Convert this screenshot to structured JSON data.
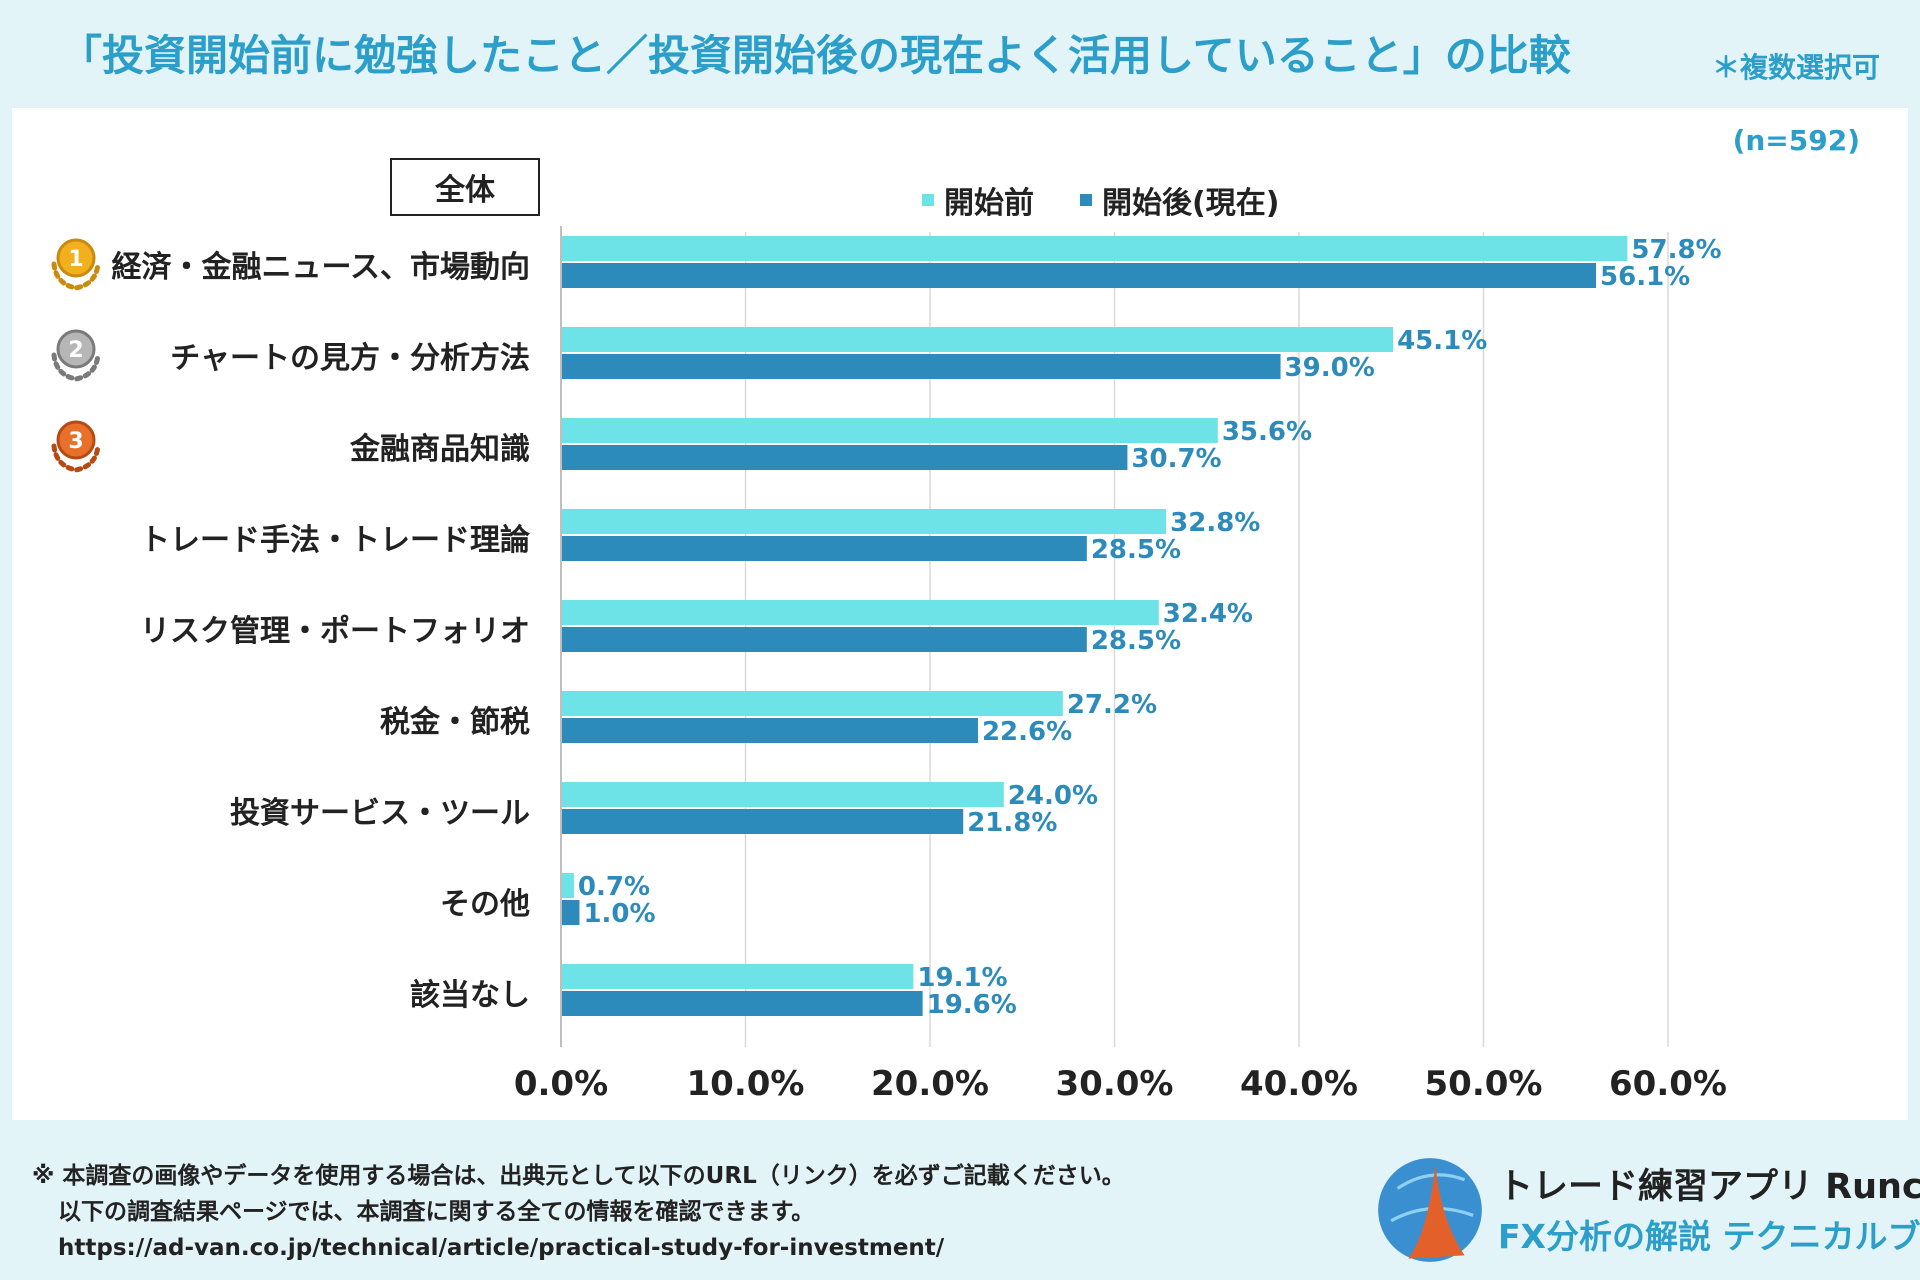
{
  "header": {
    "title": "「投資開始前に勉強したこと／投資開始後の現在よく活用していること」の比較",
    "note": "＊複数選択可"
  },
  "chart_meta": {
    "sample_size": "(n=592)",
    "segment_label": "全体"
  },
  "chart_data": {
    "type": "bar",
    "orientation": "horizontal",
    "categories": [
      "経済・金融ニュース、市場動向",
      "チャートの見方・分析方法",
      "金融商品知識",
      "トレード手法・トレード理論",
      "リスク管理・ポートフォリオ",
      "税金・節税",
      "投資サービス・ツール",
      "その他",
      "該当なし"
    ],
    "series": [
      {
        "name": "開始前",
        "color": "#6de3e8",
        "values": [
          57.8,
          45.1,
          35.6,
          32.8,
          32.4,
          27.2,
          24.0,
          0.7,
          19.1
        ],
        "labels": [
          "57.8%",
          "45.1%",
          "35.6%",
          "32.8%",
          "32.4%",
          "27.2%",
          "24.0%",
          "0.7%",
          "19.1%"
        ]
      },
      {
        "name": "開始後(現在)",
        "color": "#2c8bba",
        "values": [
          56.1,
          39.0,
          30.7,
          28.5,
          28.5,
          22.6,
          21.8,
          1.0,
          19.6
        ],
        "labels": [
          "56.1%",
          "39.0%",
          "30.7%",
          "28.5%",
          "28.5%",
          "22.6%",
          "21.8%",
          "1.0%",
          "19.6%"
        ]
      }
    ],
    "xlim": [
      0,
      60
    ],
    "xticks": [
      0,
      10,
      20,
      30,
      40,
      50,
      60
    ],
    "xtick_labels": [
      "0.0%",
      "10.0%",
      "20.0%",
      "30.0%",
      "40.0%",
      "50.0%",
      "60.0%"
    ],
    "xlabel": "",
    "ylabel": "",
    "legend_position": "top",
    "gridlines": "vertical"
  },
  "ranks": [
    {
      "number": "1",
      "color": "#f2b01e",
      "dark": "#c98a0d"
    },
    {
      "number": "2",
      "color": "#b6b6b6",
      "dark": "#7a7a7a"
    },
    {
      "number": "3",
      "color": "#e8702a",
      "dark": "#b54a12"
    }
  ],
  "footer": {
    "line1": "※ 本調査の画像やデータを使用する場合は、出典元として以下のURL（リンク）を必ずご記載ください。",
    "line2": "以下の調査結果ページでは、本調査に関する全ての情報を確認できます。",
    "url": "https://ad-van.co.jp/technical/article/practical-study-for-investment/"
  },
  "brand": {
    "name": "トレード練習アプリ Runcha",
    "tagline": "FX分析の解説 テクニカルブック"
  }
}
